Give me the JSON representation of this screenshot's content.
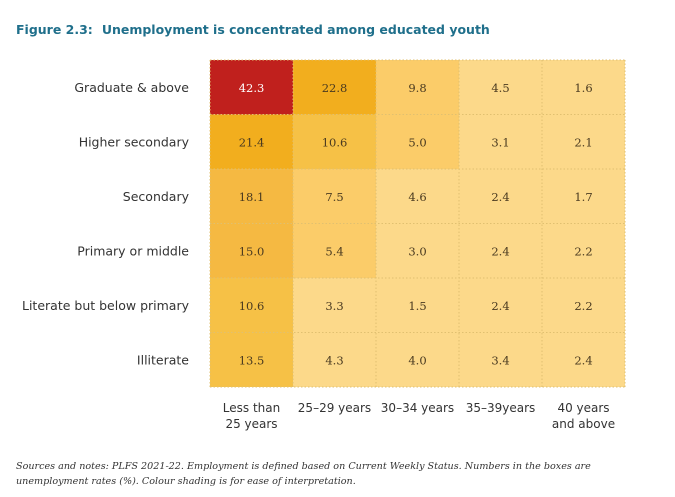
{
  "figure": {
    "number": "Figure 2.3:",
    "title": "Unemployment is concentrated among educated youth",
    "notes": "Sources and notes: PLFS 2021-22. Employment is defined based on Current Weekly Status. Numbers in the boxes are unemployment rates (%). Colour shading is for ease of interpretation."
  },
  "colors": {
    "title": "#1f6f8b",
    "grid_line": "#e0c070",
    "text_dark": "#4a3a20",
    "text_light": "#ffffff",
    "label": "#333333"
  },
  "chart_data": {
    "type": "heatmap",
    "title": "Unemployment is concentrated among educated youth",
    "value_unit": "%",
    "rows": [
      "Graduate & above",
      "Higher secondary",
      "Secondary",
      "Primary or middle",
      "Literate but below primary",
      "Illiterate"
    ],
    "columns": [
      [
        "Less than",
        "25 years"
      ],
      [
        "25–29 years"
      ],
      [
        "30–34 years"
      ],
      [
        "35–39years"
      ],
      [
        "40 years",
        "and above"
      ]
    ],
    "values": [
      [
        42.3,
        22.8,
        9.8,
        4.5,
        1.6
      ],
      [
        21.4,
        10.6,
        5.0,
        3.1,
        2.1
      ],
      [
        18.1,
        7.5,
        4.6,
        2.4,
        1.7
      ],
      [
        15.0,
        5.4,
        3.0,
        2.4,
        2.2
      ],
      [
        10.6,
        3.3,
        1.5,
        2.4,
        2.2
      ],
      [
        13.5,
        4.3,
        4.0,
        3.4,
        2.4
      ]
    ],
    "value_labels": [
      [
        "42.3",
        "22.8",
        "9.8",
        "4.5",
        "1.6"
      ],
      [
        "21.4",
        "10.6",
        "5.0",
        "3.1",
        "2.1"
      ],
      [
        "18.1",
        "7.5",
        "4.6",
        "2.4",
        "1.7"
      ],
      [
        "15.0",
        "5.4",
        "3.0",
        "2.4",
        "2.2"
      ],
      [
        "10.6",
        "3.3",
        "1.5",
        "2.4",
        "2.2"
      ],
      [
        "13.5",
        "4.3",
        "4.0",
        "3.4",
        "2.4"
      ]
    ],
    "color_scale": [
      {
        "min": 0,
        "color": "#fcd98a"
      },
      {
        "min": 5,
        "color": "#fbcc69"
      },
      {
        "min": 10,
        "color": "#f6c146"
      },
      {
        "min": 14,
        "color": "#f5b942"
      },
      {
        "min": 20,
        "color": "#f2ae1e"
      },
      {
        "min": 30,
        "color": "#c0201d"
      }
    ],
    "grid": true,
    "legend": "none"
  }
}
